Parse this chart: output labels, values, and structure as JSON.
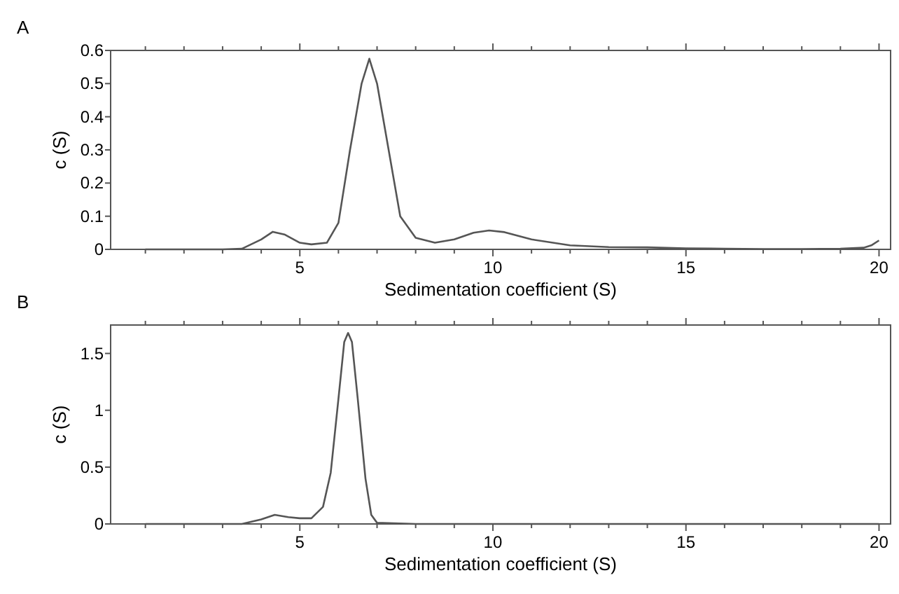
{
  "chart_data": [
    {
      "type": "line",
      "annotations": [
        "A"
      ],
      "xlabel": "Sedimentation coefficient (S)",
      "ylabel": "c (S)",
      "xlim": [
        0.1,
        20.3
      ],
      "ylim": [
        0,
        0.6
      ],
      "xticks": [
        {
          "value": 1,
          "label": null
        },
        {
          "value": 2,
          "label": null
        },
        {
          "value": 3,
          "label": null
        },
        {
          "value": 4,
          "label": null
        },
        5,
        {
          "value": 6,
          "label": null
        },
        {
          "value": 7,
          "label": null
        },
        {
          "value": 8,
          "label": null
        },
        {
          "value": 9,
          "label": null
        },
        10,
        {
          "value": 11,
          "label": null
        },
        {
          "value": 12,
          "label": null
        },
        {
          "value": 13,
          "label": null
        },
        {
          "value": 14,
          "label": null
        },
        15,
        {
          "value": 16,
          "label": null
        },
        {
          "value": 17,
          "label": null
        },
        {
          "value": 18,
          "label": null
        },
        {
          "value": 19,
          "label": null
        },
        20
      ],
      "yticks": [
        0,
        0.1,
        0.2,
        0.3,
        0.4,
        0.5,
        0.6
      ],
      "series": [
        {
          "color": "#555555",
          "x": [
            1,
            3,
            3.5,
            4,
            4.3,
            4.6,
            5,
            5.3,
            5.7,
            6,
            6.3,
            6.6,
            6.8,
            7,
            7.3,
            7.6,
            8,
            8.5,
            9,
            9.5,
            9.9,
            10.3,
            11,
            12,
            13,
            14,
            15,
            16,
            17,
            18,
            19,
            19.6,
            19.8,
            20
          ],
          "values": [
            0,
            0,
            0.002,
            0.03,
            0.053,
            0.045,
            0.02,
            0.015,
            0.02,
            0.08,
            0.3,
            0.5,
            0.575,
            0.5,
            0.3,
            0.1,
            0.035,
            0.02,
            0.03,
            0.05,
            0.057,
            0.052,
            0.03,
            0.012,
            0.007,
            0.006,
            0.003,
            0.002,
            0.001,
            0.001,
            0.002,
            0.005,
            0.012,
            0.027
          ]
        }
      ]
    },
    {
      "type": "line",
      "annotations": [
        "B"
      ],
      "xlabel": "Sedimentation coefficient (S)",
      "ylabel": "c (S)",
      "xlim": [
        0.1,
        20.3
      ],
      "ylim": [
        0,
        1.75
      ],
      "xticks": [
        {
          "value": 1,
          "label": null
        },
        {
          "value": 2,
          "label": null
        },
        {
          "value": 3,
          "label": null
        },
        {
          "value": 4,
          "label": null
        },
        5,
        {
          "value": 6,
          "label": null
        },
        {
          "value": 7,
          "label": null
        },
        {
          "value": 8,
          "label": null
        },
        {
          "value": 9,
          "label": null
        },
        10,
        {
          "value": 11,
          "label": null
        },
        {
          "value": 12,
          "label": null
        },
        {
          "value": 13,
          "label": null
        },
        {
          "value": 14,
          "label": null
        },
        15,
        {
          "value": 16,
          "label": null
        },
        {
          "value": 17,
          "label": null
        },
        {
          "value": 18,
          "label": null
        },
        {
          "value": 19,
          "label": null
        },
        20
      ],
      "yticks": [
        0,
        0.5,
        1,
        1.5
      ],
      "series": [
        {
          "color": "#555555",
          "x": [
            1,
            3.5,
            4,
            4.35,
            4.7,
            5,
            5.3,
            5.6,
            5.8,
            6,
            6.15,
            6.25,
            6.35,
            6.5,
            6.7,
            6.85,
            7,
            8,
            20
          ],
          "values": [
            0,
            0,
            0.04,
            0.08,
            0.06,
            0.05,
            0.05,
            0.15,
            0.45,
            1.1,
            1.6,
            1.68,
            1.6,
            1.1,
            0.4,
            0.08,
            0.01,
            0,
            0
          ]
        }
      ]
    }
  ]
}
